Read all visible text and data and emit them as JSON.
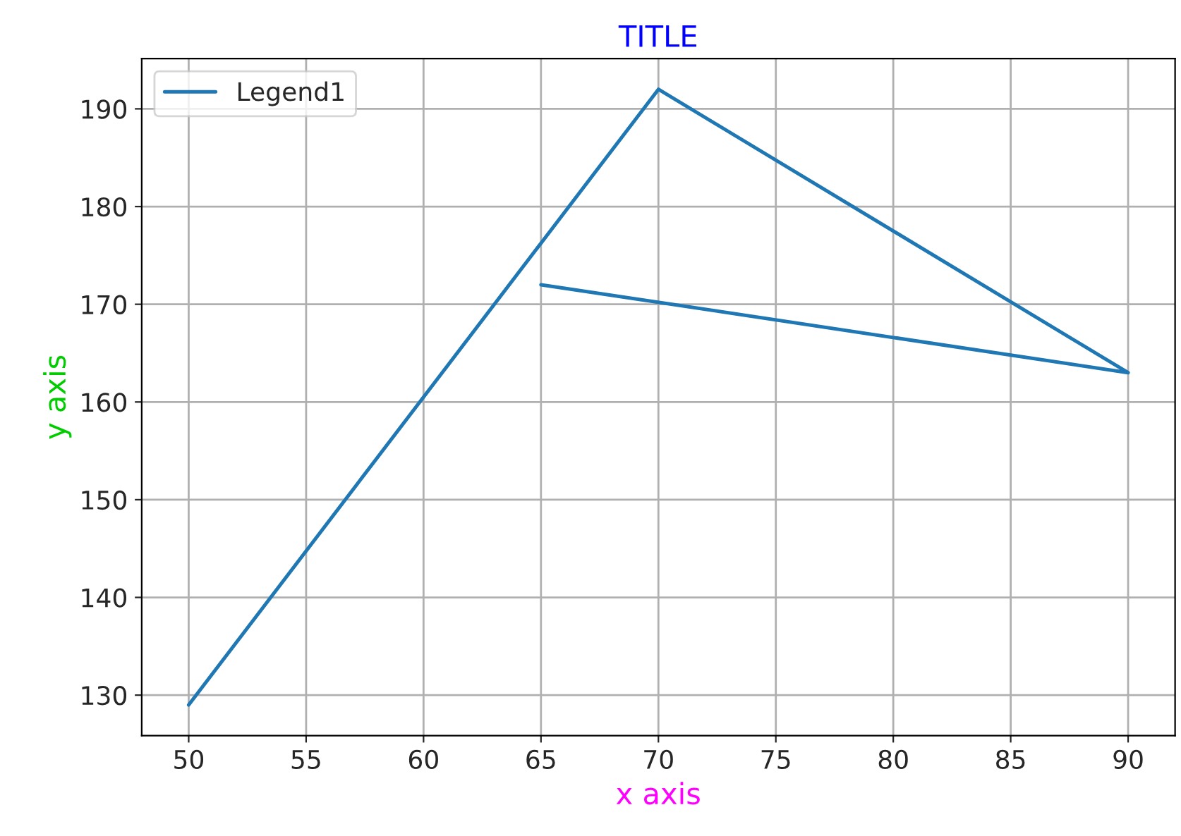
{
  "chart_data": {
    "type": "line",
    "title": "TITLE",
    "xlabel": "x axis",
    "ylabel": "y axis",
    "x": [
      50,
      70,
      90,
      65
    ],
    "series": [
      {
        "name": "Legend1",
        "color": "#1f77b4",
        "values": [
          129,
          192,
          163,
          172
        ]
      }
    ],
    "xlim": [
      48,
      92
    ],
    "ylim": [
      125.85,
      195.15
    ],
    "xticks": [
      50,
      55,
      60,
      65,
      70,
      75,
      80,
      85,
      90
    ],
    "yticks": [
      130,
      140,
      150,
      160,
      170,
      180,
      190
    ],
    "grid": true,
    "legend": "top left"
  }
}
